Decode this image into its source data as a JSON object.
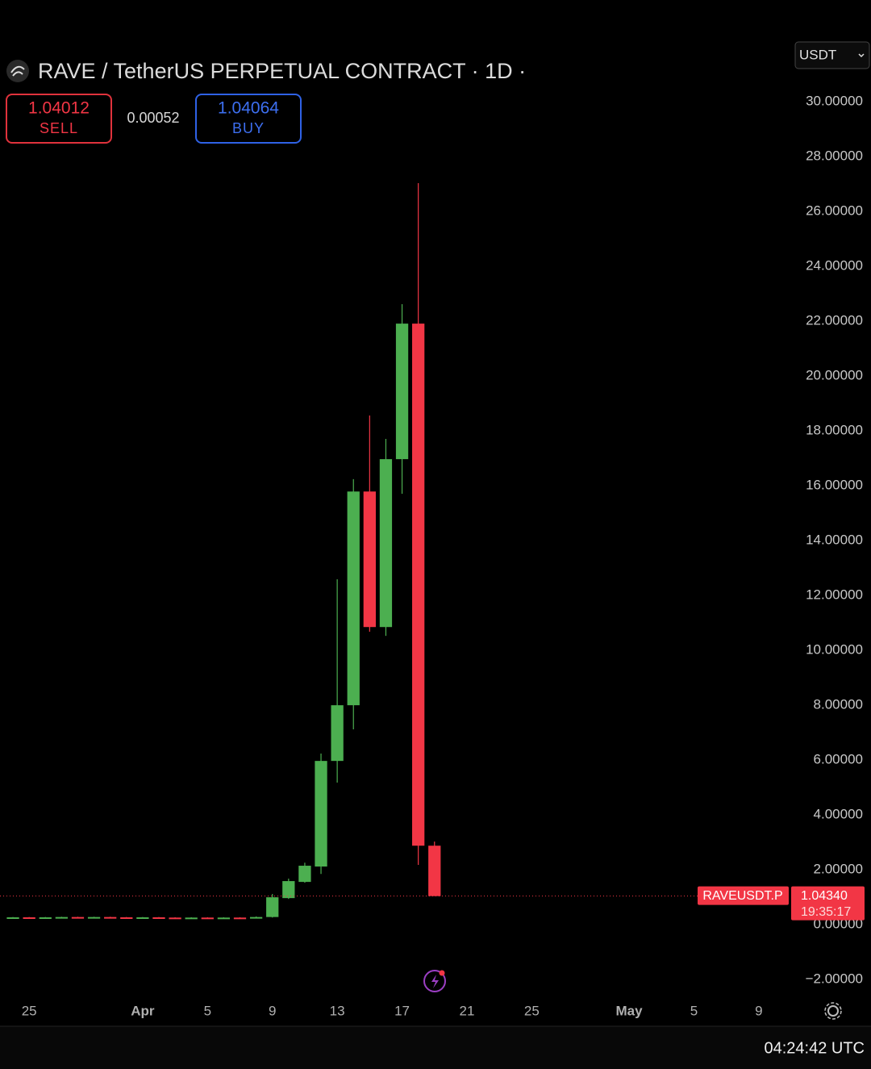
{
  "chart_data": {
    "type": "candlestick",
    "title": "RAVE / TetherUS PERPETUAL CONTRACT · 1D ·",
    "quote_currency": "USDT",
    "sell": {
      "price": 1.04012,
      "label": "SELL"
    },
    "spread": 0.00052,
    "buy": {
      "price": 1.04064,
      "label": "BUY"
    },
    "categories": [
      null,
      "25",
      null,
      null,
      null,
      null,
      null,
      null,
      "Apr",
      null,
      null,
      null,
      "5",
      null,
      null,
      null,
      "9",
      null,
      null,
      null,
      "13",
      null,
      null,
      null,
      "17",
      null,
      null,
      null,
      "21",
      null,
      null,
      null,
      "25",
      null,
      null,
      null,
      null,
      null,
      "May",
      null,
      null,
      null,
      "5",
      null,
      null,
      null,
      "9",
      null
    ],
    "open": [
      0.26,
      0.27,
      0.26,
      0.27,
      0.28,
      0.27,
      0.28,
      0.27,
      0.26,
      0.27,
      0.26,
      0.25,
      0.26,
      0.25,
      0.26,
      0.25,
      0.28,
      0.97,
      1.56,
      2.12,
      5.97,
      8.0,
      15.79,
      10.85,
      16.97,
      21.91,
      2.88,
      null,
      null,
      null,
      null,
      null,
      null,
      null,
      null,
      null,
      null,
      null,
      null,
      null,
      null,
      null,
      null,
      null,
      null,
      null,
      null,
      null
    ],
    "high": [
      0.28,
      0.28,
      0.28,
      0.29,
      0.29,
      0.29,
      0.29,
      0.28,
      0.28,
      0.28,
      0.27,
      0.27,
      0.27,
      0.27,
      0.27,
      0.3,
      1.12,
      1.68,
      2.26,
      6.24,
      12.59,
      16.24,
      18.56,
      17.71,
      22.62,
      27.03,
      3.03,
      null,
      null,
      null,
      null,
      null,
      null,
      null,
      null,
      null,
      null,
      null,
      null,
      null,
      null,
      null,
      null,
      null,
      null,
      null,
      null,
      null
    ],
    "low": [
      0.25,
      0.25,
      0.25,
      0.26,
      0.26,
      0.26,
      0.26,
      0.25,
      0.25,
      0.25,
      0.24,
      0.24,
      0.24,
      0.24,
      0.24,
      0.24,
      0.26,
      0.94,
      1.53,
      1.85,
      5.18,
      7.12,
      10.68,
      10.53,
      15.71,
      2.18,
      1.0434,
      null,
      null,
      null,
      null,
      null,
      null,
      null,
      null,
      null,
      null,
      null,
      null,
      null,
      null,
      null,
      null,
      null,
      null,
      null,
      null,
      null
    ],
    "close": [
      0.27,
      0.26,
      0.27,
      0.28,
      0.27,
      0.28,
      0.27,
      0.26,
      0.27,
      0.26,
      0.25,
      0.26,
      0.25,
      0.26,
      0.25,
      0.28,
      1.0,
      1.59,
      2.15,
      5.97,
      8.0,
      15.79,
      10.85,
      16.97,
      21.91,
      2.88,
      1.0434,
      null,
      null,
      null,
      null,
      null,
      null,
      null,
      null,
      null,
      null,
      null,
      null,
      null,
      null,
      null,
      null,
      null,
      null,
      null,
      null,
      null
    ],
    "up_color": "#4caf50",
    "down_color": "#f23645",
    "ylim": [
      -2.76,
      32.53
    ],
    "yticks": [
      {
        "value": 30,
        "label": "30.00000"
      },
      {
        "value": 28,
        "label": "28.00000"
      },
      {
        "value": 26,
        "label": "26.00000"
      },
      {
        "value": 24,
        "label": "24.00000"
      },
      {
        "value": 22,
        "label": "22.00000"
      },
      {
        "value": 20,
        "label": "20.00000"
      },
      {
        "value": 18,
        "label": "18.00000"
      },
      {
        "value": 16,
        "label": "16.00000"
      },
      {
        "value": 14,
        "label": "14.00000"
      },
      {
        "value": 12,
        "label": "12.00000"
      },
      {
        "value": 10,
        "label": "10.00000"
      },
      {
        "value": 8,
        "label": "8.00000"
      },
      {
        "value": 6,
        "label": "6.00000"
      },
      {
        "value": 4,
        "label": "4.00000"
      },
      {
        "value": 2,
        "label": "2.00000"
      },
      {
        "value": 0,
        "label": "0.00000"
      },
      {
        "value": -2,
        "label": "−2.00000"
      }
    ],
    "last_price": {
      "symbol": "RAVEUSDT.P",
      "value": 1.0434,
      "label": "1.04340",
      "countdown": "19:35:17"
    },
    "clock": "04:24:42 UTC"
  }
}
